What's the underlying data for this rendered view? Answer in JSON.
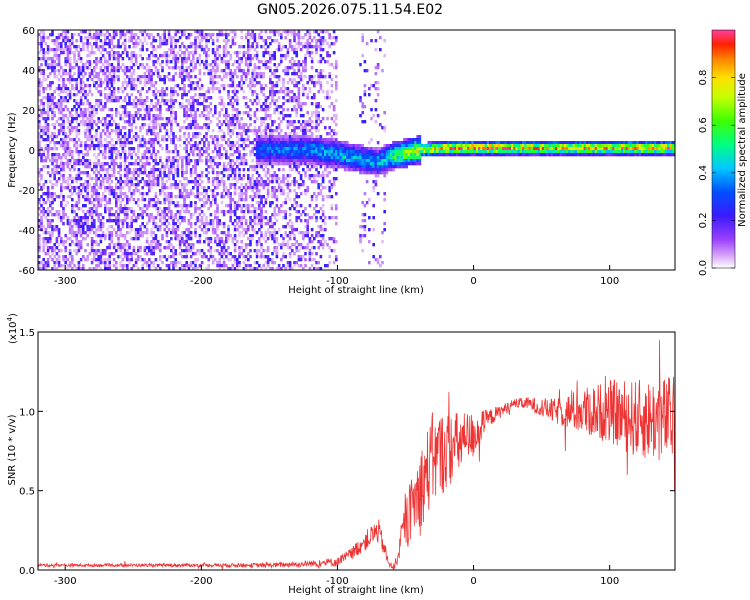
{
  "title": "GN05.2026.075.11.54.E02",
  "chart_data": [
    {
      "type": "heatmap",
      "title": "GN05.2026.075.11.54.E02",
      "xlabel": "Height of straight line (km)",
      "ylabel": "Frequency (Hz)",
      "xlim": [
        -320,
        148
      ],
      "ylim": [
        -60,
        60
      ],
      "xticks": [
        -300,
        -200,
        -100,
        0,
        100
      ],
      "xtick_labels": [
        "-300",
        "-200",
        "-100",
        "0",
        "100"
      ],
      "yticks": [
        60,
        40,
        20,
        0,
        -20,
        -40,
        -60
      ],
      "ytick_labels": [
        "60",
        "40",
        "20",
        "0",
        "-20",
        "-40",
        "-60"
      ],
      "colorbar": {
        "label": "Normalized spectral amplitude",
        "range": [
          0.0,
          1.0
        ],
        "ticks": [
          0.0,
          0.2,
          0.4,
          0.6,
          0.8
        ],
        "tick_labels": [
          "0.0",
          "0.2",
          "0.4",
          "0.6",
          "0.8"
        ]
      },
      "ridge": {
        "description_points_x": [
          -150,
          -120,
          -100,
          -80,
          -70,
          -60,
          -40,
          -20,
          0,
          50,
          100,
          148
        ],
        "center_freq_hz": [
          0,
          0,
          -2,
          -5,
          -6,
          -3,
          0,
          1,
          1,
          1,
          1,
          1
        ],
        "amplitude": [
          0.35,
          0.38,
          0.42,
          0.45,
          0.4,
          0.55,
          0.75,
          0.85,
          0.9,
          0.8,
          0.85,
          0.85
        ]
      },
      "noise": {
        "x_range": [
          -320,
          -100
        ],
        "level": 0.15
      }
    },
    {
      "type": "line",
      "xlabel": "Height of straight line (km)",
      "ylabel": "SNR (10 * v/v)",
      "scale_label": "(x10",
      "scale_exp": "4",
      "scale_close": ")",
      "xlim": [
        -320,
        148
      ],
      "ylim": [
        0,
        1.5
      ],
      "xticks": [
        -300,
        -200,
        -100,
        0,
        100
      ],
      "xtick_labels": [
        "-300",
        "-200",
        "-100",
        "0",
        "100"
      ],
      "yticks": [
        0,
        0.5,
        1.0,
        1.5
      ],
      "ytick_labels": [
        "0.0",
        "0.5",
        "1.0",
        "1.5"
      ],
      "series": [
        {
          "name": "SNR",
          "color": "#ee3333",
          "x": [
            -320,
            -250,
            -200,
            -150,
            -120,
            -100,
            -90,
            -80,
            -70,
            -65,
            -62,
            -58,
            -50,
            -40,
            -30,
            -20,
            -10,
            0,
            10,
            20,
            30,
            40,
            60,
            80,
            100,
            120,
            148
          ],
          "y": [
            0.03,
            0.03,
            0.03,
            0.03,
            0.04,
            0.05,
            0.1,
            0.18,
            0.25,
            0.12,
            0.03,
            0.02,
            0.3,
            0.5,
            0.7,
            0.75,
            0.8,
            0.85,
            0.95,
            1.0,
            1.05,
            1.05,
            1.0,
            1.0,
            1.0,
            0.95,
            0.95
          ],
          "spread": [
            0.01,
            0.01,
            0.01,
            0.015,
            0.02,
            0.03,
            0.04,
            0.06,
            0.08,
            0.05,
            0.02,
            0.02,
            0.15,
            0.25,
            0.3,
            0.25,
            0.2,
            0.15,
            0.06,
            0.04,
            0.03,
            0.04,
            0.08,
            0.15,
            0.2,
            0.25,
            0.28
          ]
        }
      ]
    }
  ]
}
